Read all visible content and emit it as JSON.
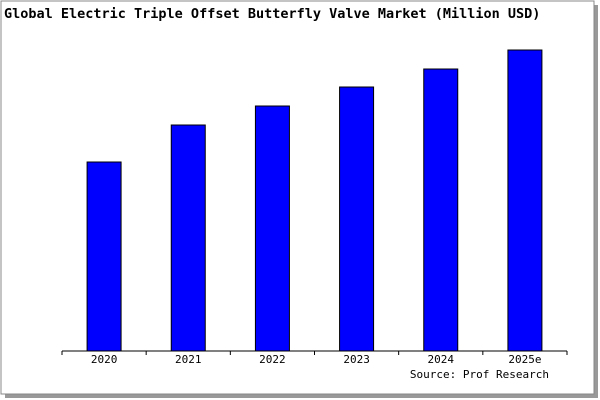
{
  "chart_data": {
    "type": "bar",
    "title": "Global Electric Triple Offset Butterfly Valve Market (Million USD)",
    "categories": [
      "2020",
      "2021",
      "2022",
      "2023",
      "2024",
      "2025e"
    ],
    "values": [
      189,
      226,
      245,
      264,
      282,
      301
    ],
    "color": "#0000ff",
    "ylim": [
      0,
      310
    ],
    "source": "Source: Prof Research"
  }
}
